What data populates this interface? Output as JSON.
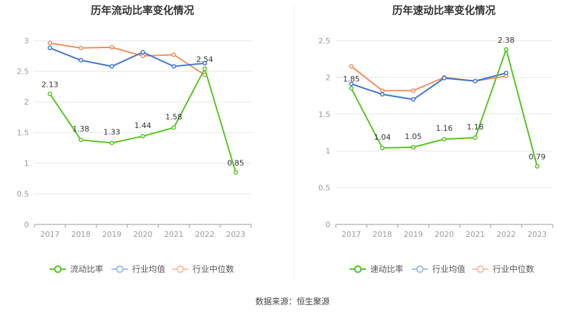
{
  "source_text": "数据来源：恒生聚源",
  "colors": {
    "main": "#52c41a",
    "avg": "#3b73d4",
    "median": "#f08c5a",
    "avg_light": "#9fc0ee",
    "median_light": "#f7c2a6"
  },
  "chart_data": [
    {
      "type": "line",
      "title": "历年流动比率变化情况",
      "categories": [
        "2017",
        "2018",
        "2019",
        "2020",
        "2021",
        "2022",
        "2023"
      ],
      "ylim": [
        0,
        3
      ],
      "yticks": [
        0,
        0.5,
        1,
        1.5,
        2,
        2.5,
        3
      ],
      "grid": true,
      "legend_position": "bottom",
      "series": [
        {
          "name": "流动比率",
          "values": [
            2.13,
            1.38,
            1.33,
            1.44,
            1.58,
            2.54,
            0.85
          ],
          "labels": [
            "2.13",
            "1.38",
            "1.33",
            "1.44",
            "1.58",
            "2.54",
            "0.85"
          ]
        },
        {
          "name": "行业均值",
          "values": [
            2.88,
            2.68,
            2.58,
            2.81,
            2.58,
            2.63,
            null
          ]
        },
        {
          "name": "行业中位数",
          "values": [
            2.96,
            2.88,
            2.89,
            2.75,
            2.77,
            2.44,
            null
          ]
        }
      ]
    },
    {
      "type": "line",
      "title": "历年速动比率变化情况",
      "categories": [
        "2017",
        "2018",
        "2019",
        "2020",
        "2021",
        "2022",
        "2023"
      ],
      "ylim": [
        0,
        2.5
      ],
      "yticks": [
        0,
        0.5,
        1,
        1.5,
        2,
        2.5
      ],
      "grid": true,
      "legend_position": "bottom",
      "series": [
        {
          "name": "速动比率",
          "values": [
            1.85,
            1.04,
            1.05,
            1.16,
            1.18,
            2.38,
            0.79
          ],
          "labels": [
            "1.85",
            "1.04",
            "1.05",
            "1.16",
            "1.18",
            "2.38",
            "0.79"
          ]
        },
        {
          "name": "行业均值",
          "values": [
            1.91,
            1.77,
            1.7,
            1.99,
            1.95,
            2.06,
            null
          ]
        },
        {
          "name": "行业中位数",
          "values": [
            2.15,
            1.82,
            1.82,
            2.0,
            1.95,
            2.02,
            null
          ]
        }
      ]
    }
  ]
}
